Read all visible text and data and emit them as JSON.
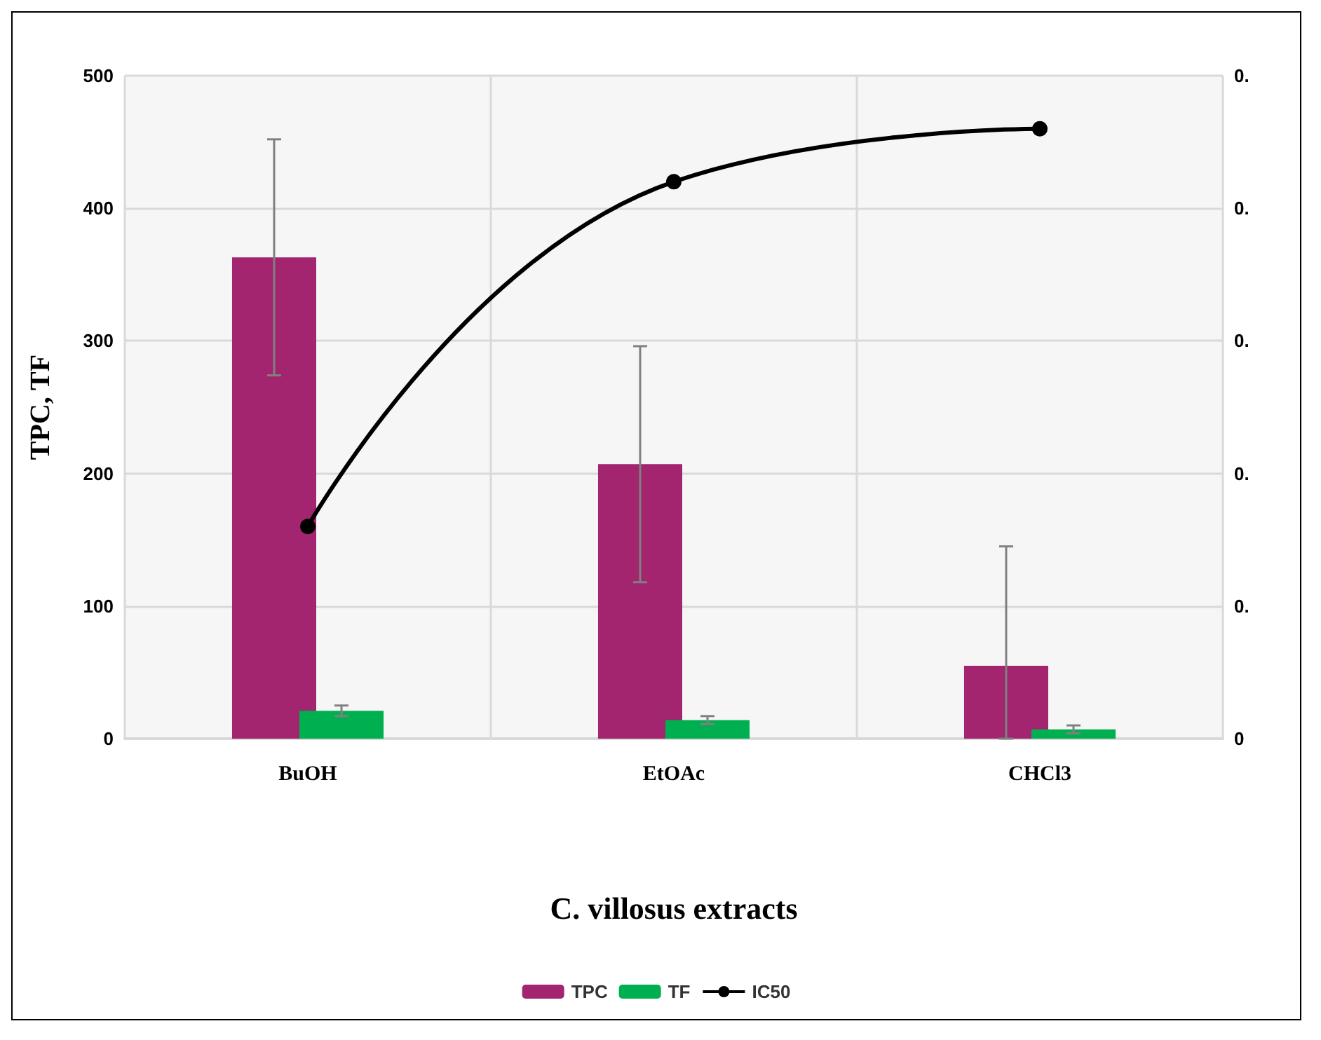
{
  "chart_data": {
    "type": "bar",
    "xlabel": "C. villosus extracts",
    "ylabel": "TPC, TF",
    "categories": [
      "BuOH",
      "EtOAc",
      "CHCl3"
    ],
    "series": [
      {
        "name": "TPC",
        "color": "#a3246f",
        "values": [
          363,
          207,
          55
        ],
        "errors": [
          89,
          89,
          [
            0,
            145
          ]
        ]
      },
      {
        "name": "TF",
        "color": "#00b050",
        "values": [
          21,
          14,
          7
        ],
        "errors": [
          4,
          3,
          3
        ]
      },
      {
        "name": "IC50",
        "type": "line",
        "axis": "y2",
        "color": "#000000",
        "values": [
          0.16,
          0.42,
          0.46
        ],
        "marker": "circle"
      }
    ],
    "ylim": [
      0,
      500
    ],
    "yticks": [
      0,
      100,
      200,
      300,
      400,
      500
    ],
    "y2lim": [
      0,
      0.5
    ],
    "y2ticks": [
      0,
      {
        "value": 0.1,
        "label": "0."
      },
      {
        "value": 0.2,
        "label": "0."
      },
      {
        "value": 0.3,
        "label": "0."
      },
      {
        "value": 0.4,
        "label": "0."
      },
      {
        "value": 0.5,
        "label": "0."
      }
    ],
    "grid": true,
    "legend": "bottom"
  }
}
